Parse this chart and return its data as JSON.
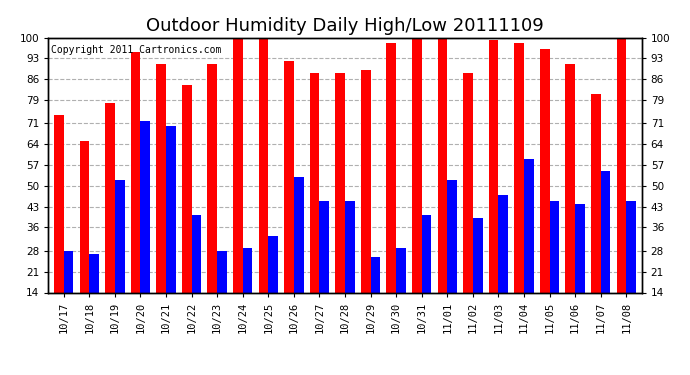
{
  "title": "Outdoor Humidity Daily High/Low 20111109",
  "copyright": "Copyright 2011 Cartronics.com",
  "dates": [
    "10/17",
    "10/18",
    "10/19",
    "10/20",
    "10/21",
    "10/22",
    "10/23",
    "10/24",
    "10/25",
    "10/26",
    "10/27",
    "10/28",
    "10/29",
    "10/30",
    "10/31",
    "11/01",
    "11/02",
    "11/03",
    "11/04",
    "11/05",
    "11/06",
    "11/07",
    "11/08"
  ],
  "highs": [
    74,
    65,
    78,
    95,
    91,
    84,
    91,
    100,
    100,
    92,
    88,
    88,
    89,
    98,
    100,
    100,
    88,
    99,
    98,
    96,
    91,
    81,
    100
  ],
  "lows": [
    28,
    27,
    52,
    72,
    70,
    40,
    28,
    29,
    33,
    53,
    45,
    45,
    26,
    29,
    40,
    52,
    39,
    47,
    59,
    45,
    44,
    55,
    45
  ],
  "bar_color_high": "#ff0000",
  "bar_color_low": "#0000ff",
  "background_color": "#ffffff",
  "plot_bg_color": "#ffffff",
  "grid_color": "#b0b0b0",
  "yticks": [
    14,
    21,
    28,
    36,
    43,
    50,
    57,
    64,
    71,
    79,
    86,
    93,
    100
  ],
  "ymin": 14,
  "ymax": 100,
  "title_fontsize": 13,
  "copyright_fontsize": 7,
  "tick_fontsize": 7.5,
  "bar_width": 0.38
}
